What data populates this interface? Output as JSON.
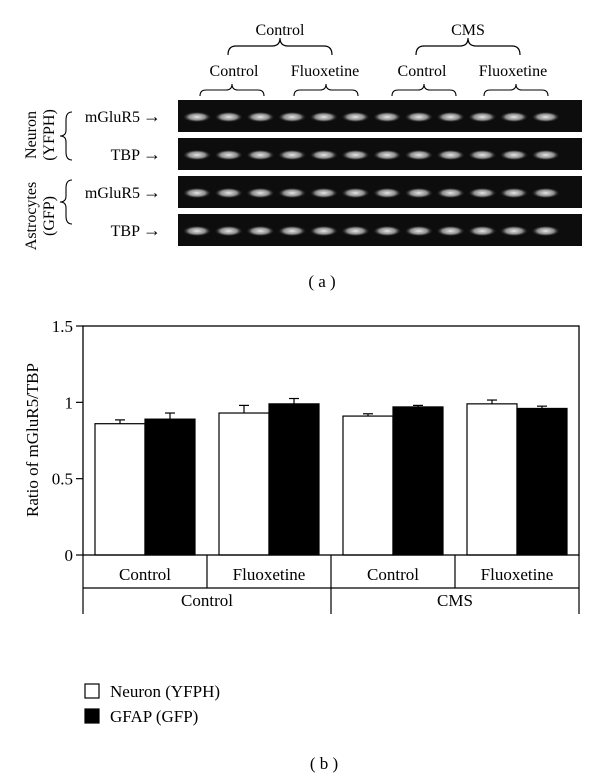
{
  "panel_a": {
    "label": "( a )",
    "group_labels": [
      "Control",
      "CMS"
    ],
    "subgroup_labels": [
      "Control",
      "Fluoxetine",
      "Control",
      "Fluoxetine"
    ],
    "cell_type_labels": [
      {
        "line1": "Neuron",
        "line2": "(YFPH)"
      },
      {
        "line1": "Astrocytes",
        "line2": "(GFP)"
      }
    ],
    "rows": [
      {
        "label": "mGluR5",
        "arrow": "→"
      },
      {
        "label": "TBP",
        "arrow": "→"
      },
      {
        "label": "mGluR5",
        "arrow": "→"
      },
      {
        "label": "TBP",
        "arrow": "→"
      }
    ]
  },
  "panel_b": {
    "label": "( b )"
  },
  "chart_data": {
    "type": "bar",
    "title": "",
    "xlabel": "",
    "ylabel": "Ratio of mGluR5/TBP",
    "ylim": [
      0,
      1.5
    ],
    "yticks": [
      {
        "value": 0,
        "label": "0"
      },
      {
        "value": 0.5,
        "label": "0.5"
      },
      {
        "value": 1,
        "label": "1"
      },
      {
        "value": 1.5,
        "label": "1.5"
      }
    ],
    "categories": [
      "Control",
      "Fluoxetine",
      "Control",
      "Fluoxetine"
    ],
    "groups": [
      {
        "label": "Control",
        "categories": [
          0,
          1
        ]
      },
      {
        "label": "CMS",
        "categories": [
          2,
          3
        ]
      }
    ],
    "series": [
      {
        "name": "Neuron (YFPH)",
        "fill": "#ffffff",
        "values": [
          0.86,
          0.93,
          0.91,
          0.99
        ],
        "errors": [
          0.025,
          0.05,
          0.015,
          0.025
        ]
      },
      {
        "name": "GFAP (GFP)",
        "fill": "#000000",
        "values": [
          0.89,
          0.99,
          0.97,
          0.96
        ],
        "errors": [
          0.04,
          0.035,
          0.01,
          0.015
        ]
      }
    ],
    "legend_position": "bottom-left"
  }
}
